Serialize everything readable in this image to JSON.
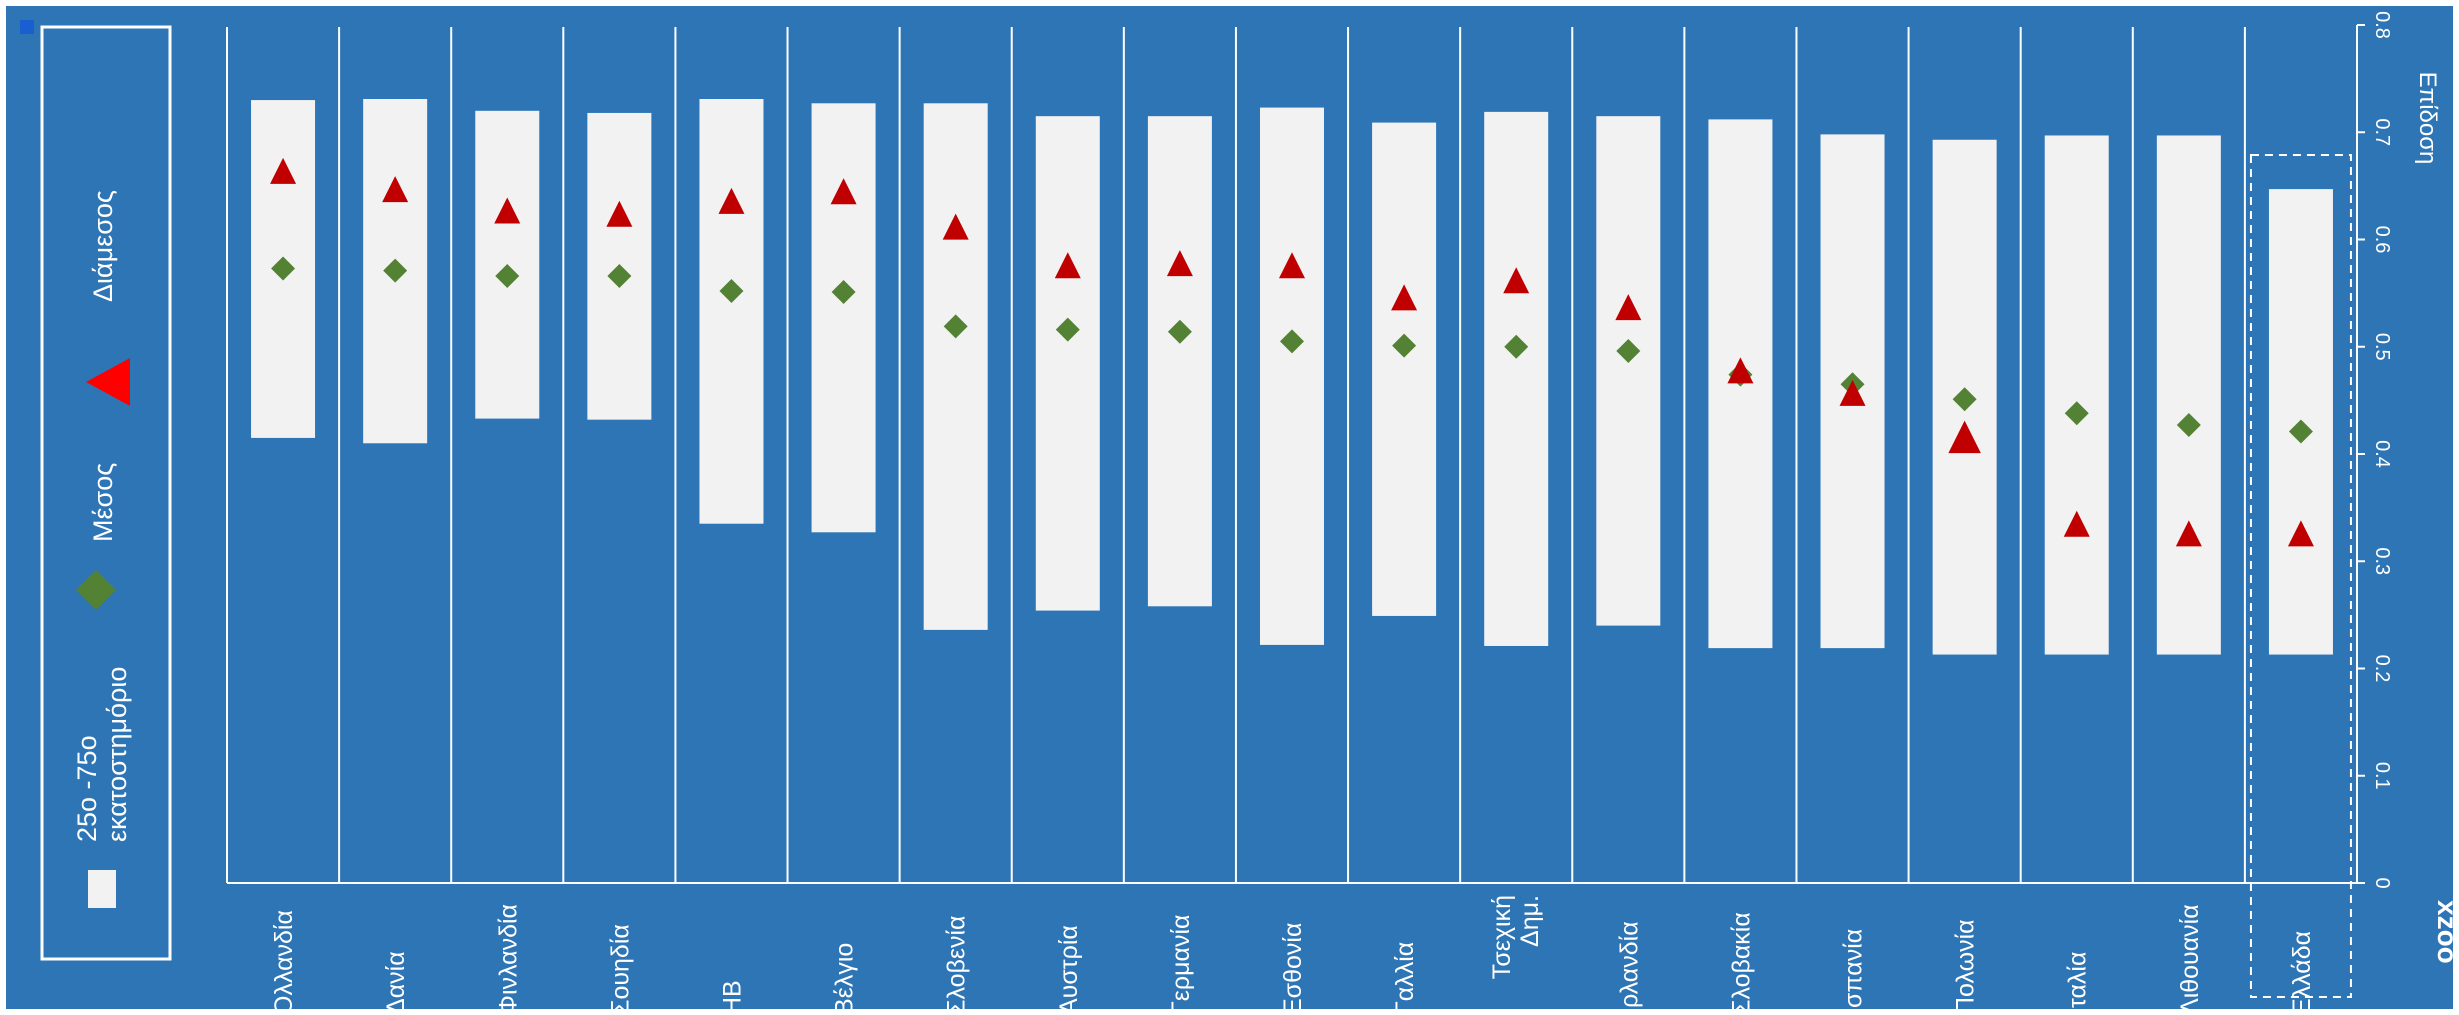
{
  "colors": {
    "background": "#2e75b6",
    "bar": "#f2f2f2",
    "mean": "#548235",
    "median": "#c00000",
    "legend_median": "#ff0000",
    "text": "#ffffff"
  },
  "legend": {
    "items": [
      {
        "key": "range",
        "label_lines": [
          "25ο -75ο",
          "εκατοστημόριο"
        ]
      },
      {
        "key": "mean",
        "label_lines": [
          "Μέσος"
        ]
      },
      {
        "key": "median",
        "label_lines": [
          "Διάμεσος"
        ]
      }
    ]
  },
  "side_text": "xzoo",
  "chart_data": {
    "type": "bar",
    "orientation": "rotated 90° clockwise (value axis runs top to bottom on the right side)",
    "ylabel": "Επίδοση",
    "ylim": [
      0,
      0.8
    ],
    "yticks": [
      "0",
      "0.1",
      "0.2",
      "0.3",
      "0.4",
      "0.5",
      "0.6",
      "0.7",
      "0.8"
    ],
    "grid": false,
    "legend_position": "left",
    "highlighted_category": "Ελλάδα",
    "categories": [
      [
        "Ολλανδία"
      ],
      [
        "Δανία"
      ],
      [
        "Φινλανδία"
      ],
      [
        "Σουηδία"
      ],
      [
        "ΗΒ"
      ],
      [
        "Βέλγιο"
      ],
      [
        "Σλοβενία"
      ],
      [
        "Αυστρία"
      ],
      [
        "Γερμανία"
      ],
      [
        "Εσθονία"
      ],
      [
        "Γαλλία"
      ],
      [
        "Τσεχική",
        "Δημ."
      ],
      [
        "Ιρλανδία"
      ],
      [
        "Σλοβακία"
      ],
      [
        "Ισπανία"
      ],
      [
        "Πολωνία"
      ],
      [
        "Ιταλία"
      ],
      [
        "Λιθουανία"
      ],
      [
        "Ελλάδα"
      ]
    ],
    "series": [
      {
        "name": "25ο -75ο εκατοστημόριο",
        "kind": "range",
        "low": [
          0.415,
          0.41,
          0.433,
          0.432,
          0.335,
          0.327,
          0.236,
          0.254,
          0.258,
          0.222,
          0.249,
          0.221,
          0.24,
          0.219,
          0.219,
          0.213,
          0.213,
          0.213,
          0.213
        ],
        "high": [
          0.73,
          0.731,
          0.72,
          0.718,
          0.731,
          0.727,
          0.727,
          0.715,
          0.715,
          0.723,
          0.709,
          0.719,
          0.715,
          0.712,
          0.698,
          0.693,
          0.697,
          0.697,
          0.647
        ]
      },
      {
        "name": "Μέσος",
        "kind": "mean",
        "values": [
          0.573,
          0.571,
          0.566,
          0.566,
          0.552,
          0.551,
          0.519,
          0.516,
          0.514,
          0.505,
          0.501,
          0.5,
          0.496,
          0.474,
          0.465,
          0.451,
          0.438,
          0.427,
          0.421
        ]
      },
      {
        "name": "Διάμεσος",
        "kind": "median",
        "values": [
          0.664,
          0.647,
          0.627,
          0.624,
          0.636,
          0.645,
          0.612,
          0.576,
          0.578,
          0.576,
          0.546,
          0.562,
          0.537,
          0.478,
          0.457,
          0.416,
          0.335,
          0.326,
          0.326
        ]
      }
    ]
  }
}
